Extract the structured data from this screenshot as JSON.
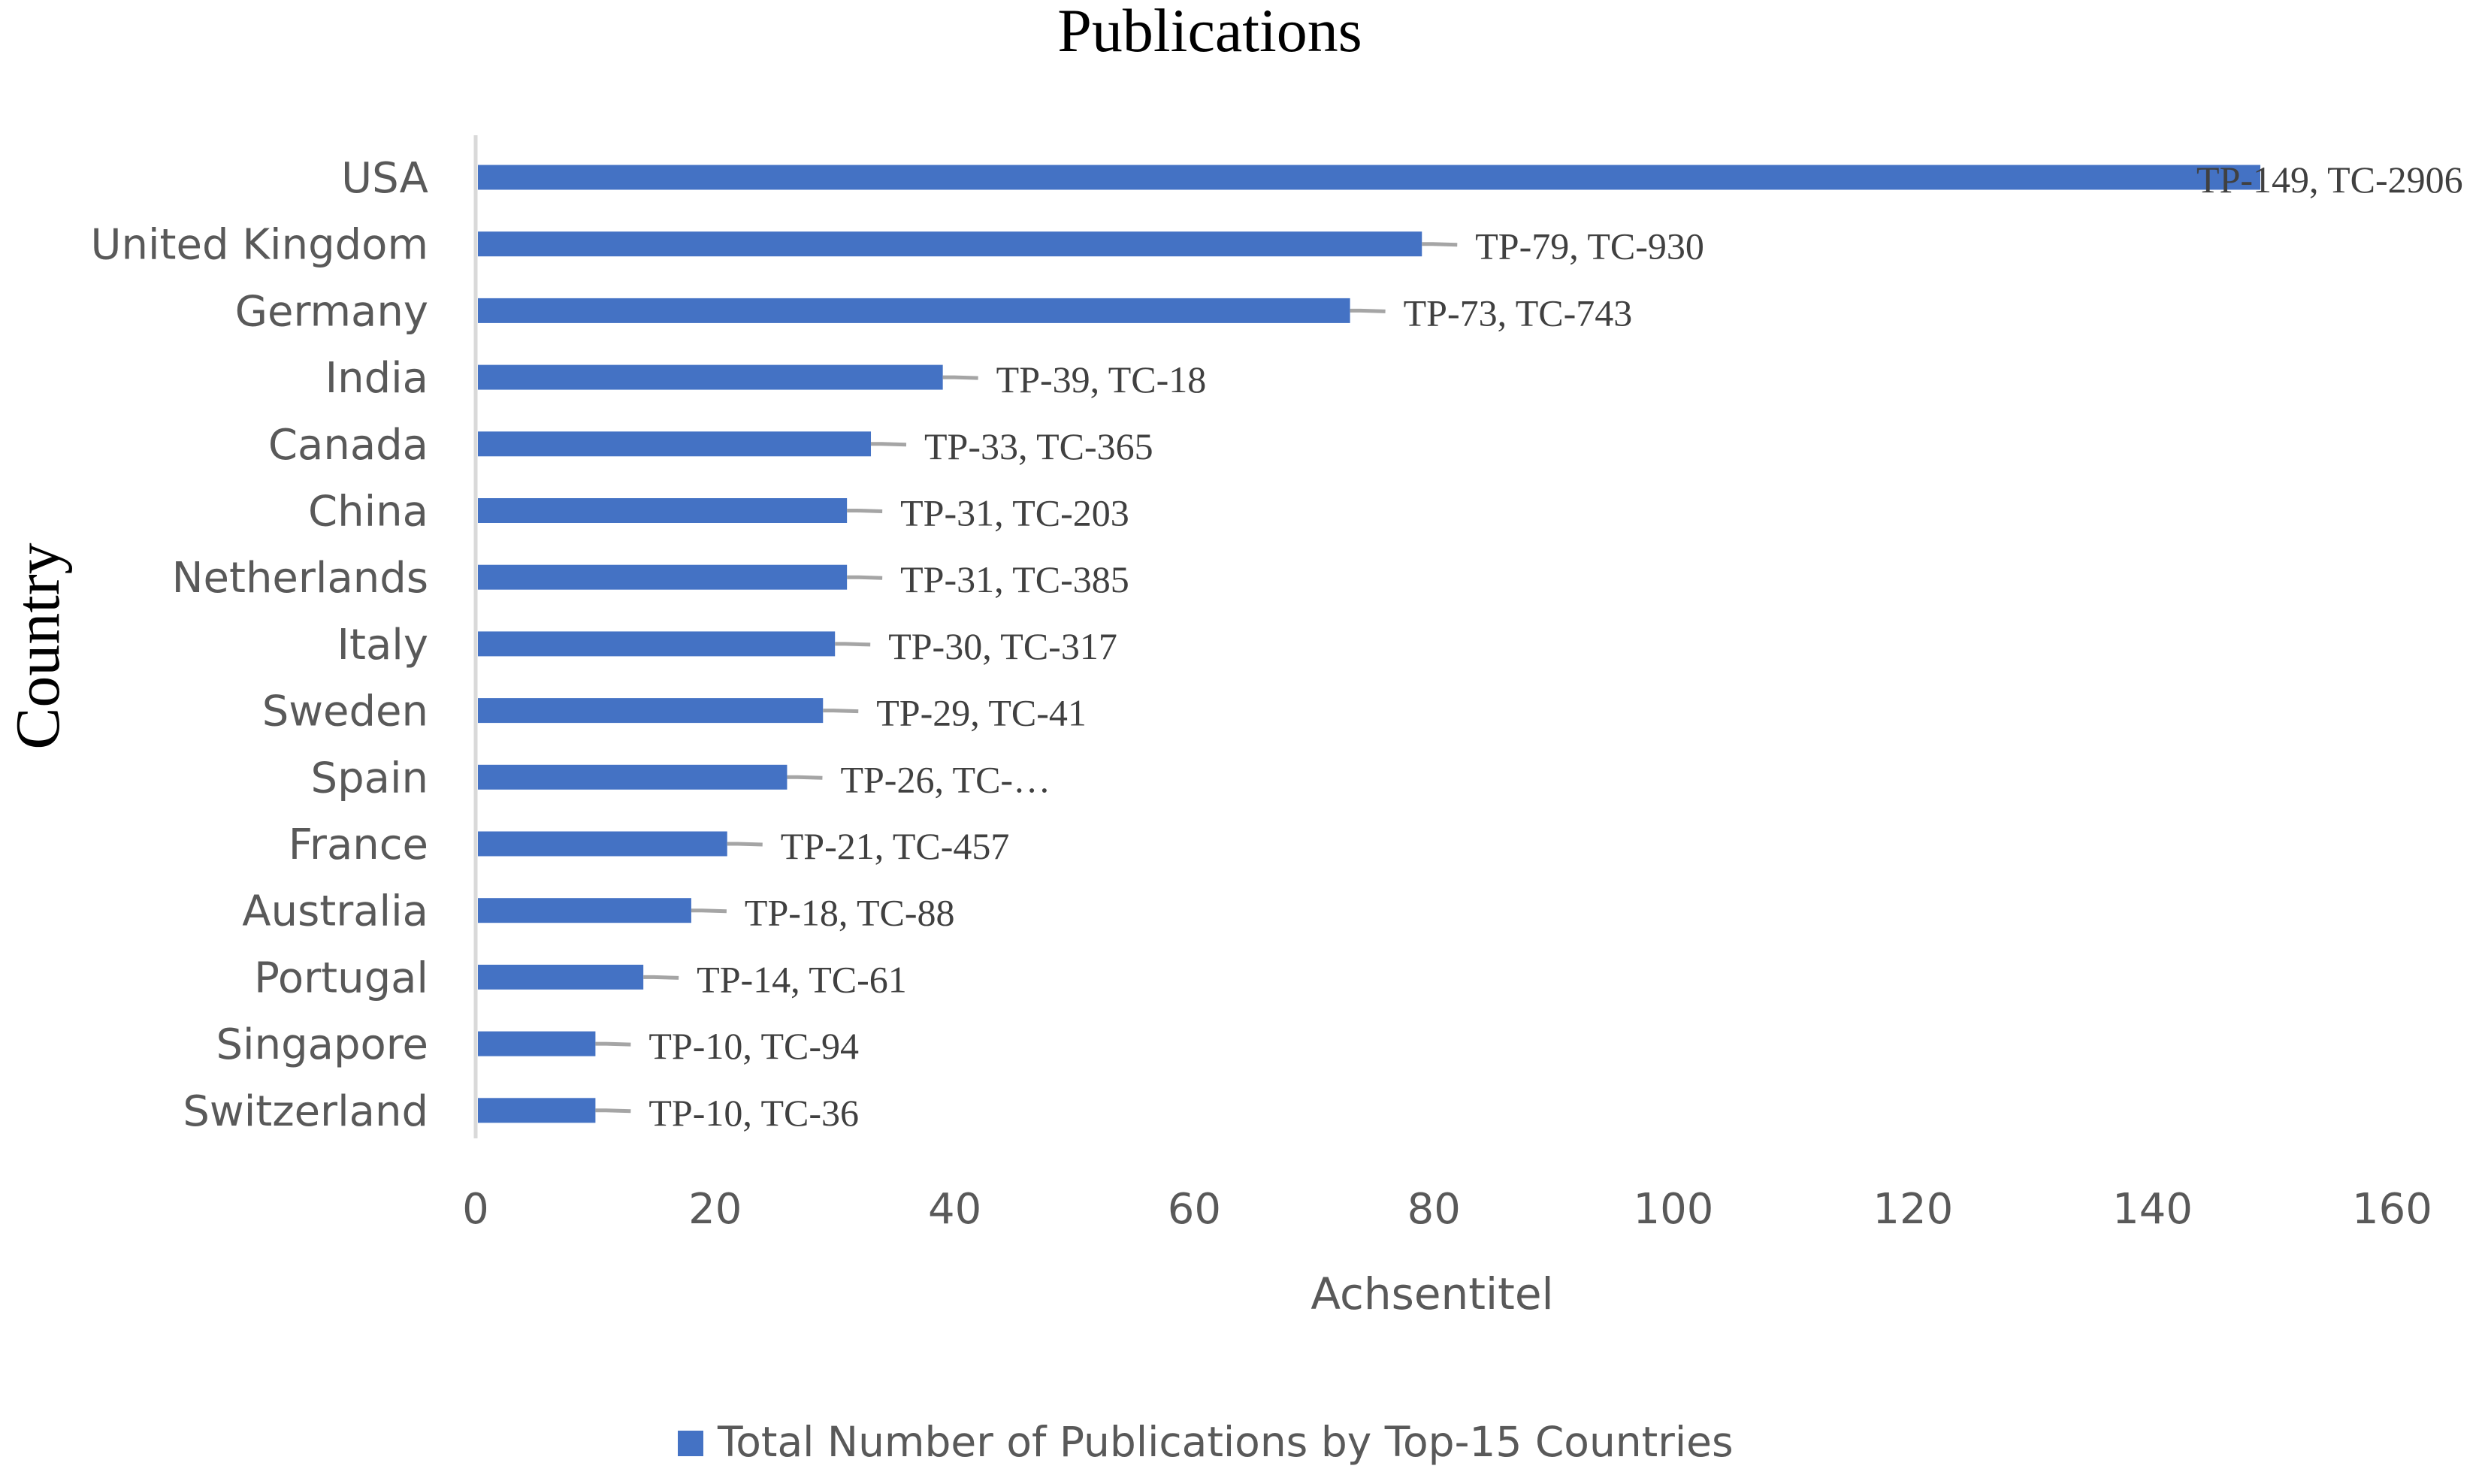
{
  "chart_data": {
    "type": "bar",
    "orientation": "horizontal",
    "title": "Publications",
    "xlabel": "Achsentitel",
    "ylabel": "Country",
    "xlim": [
      0,
      160
    ],
    "xticks": [
      0,
      20,
      40,
      60,
      80,
      100,
      120,
      140,
      160
    ],
    "grid": false,
    "legend_position": "bottom",
    "series": [
      {
        "name": "Total Number of Publications by Top-15 Countries",
        "color": "#4472C4",
        "values": [
          149,
          79,
          73,
          39,
          33,
          31,
          31,
          30,
          29,
          26,
          21,
          18,
          14,
          10,
          10
        ]
      }
    ],
    "categories": [
      "USA",
      "United Kingdom",
      "Germany",
      "India",
      "Canada",
      "China",
      "Netherlands",
      "Italy",
      "Sweden",
      "Spain",
      "France",
      "Australia",
      "Portugal",
      "Singapore",
      "Switzerland"
    ],
    "data_labels": [
      "TP-149, TC-2906",
      "TP-79, TC-930",
      "TP-73, TC-743",
      "TP-39, TC-18",
      "TP-33, TC-365",
      "TP-31, TC-203",
      "TP-31, TC-385",
      "TP-30, TC-317",
      "TP-29, TC-41",
      "TP-26, TC-…",
      "TP-21, TC-457",
      "TP-18, TC-88",
      "TP-14, TC-61",
      "TP-10, TC-94",
      "TP-10, TC-36"
    ],
    "leader_line_color": "#A5A5A5",
    "axis_color": "#D9D9D9",
    "text_color": "#595959"
  }
}
